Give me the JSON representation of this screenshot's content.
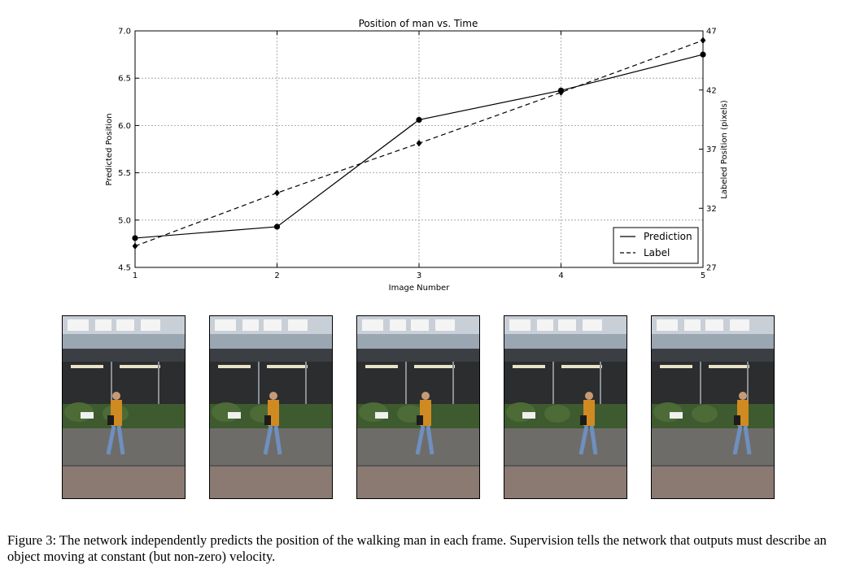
{
  "chart_data": {
    "type": "line",
    "title": "Position of man vs. Time",
    "xlabel": "Image Number",
    "ylabel": "Predicted Position",
    "y2label": "Labeled Position (pixels)",
    "x": [
      1,
      2,
      3,
      4,
      5
    ],
    "xlim": [
      1,
      5
    ],
    "xticks": [
      "1",
      "2",
      "3",
      "4",
      "5"
    ],
    "ylim": [
      4.5,
      7.0
    ],
    "yticks": [
      "4.5",
      "5.0",
      "5.5",
      "6.0",
      "6.5",
      "7.0"
    ],
    "y2lim": [
      27,
      47
    ],
    "y2ticks": [
      "27",
      "32",
      "37",
      "42",
      "47"
    ],
    "grid": true,
    "legend_position": "lower-right",
    "series": [
      {
        "name": "Prediction",
        "axis": "left",
        "style": "solid",
        "marker": "circle",
        "values": [
          4.81,
          4.93,
          6.06,
          6.37,
          6.75
        ]
      },
      {
        "name": "Label",
        "axis": "right",
        "style": "dashed",
        "marker": "diamond",
        "values": [
          28.8,
          33.3,
          37.5,
          41.8,
          46.2
        ]
      }
    ]
  },
  "figure": {
    "frame_count": 5,
    "caption": "Figure 3: The network independently predicts the position of the walking man in each frame. Supervision tells the network that outputs must describe an object moving at constant (but non-zero) velocity."
  }
}
